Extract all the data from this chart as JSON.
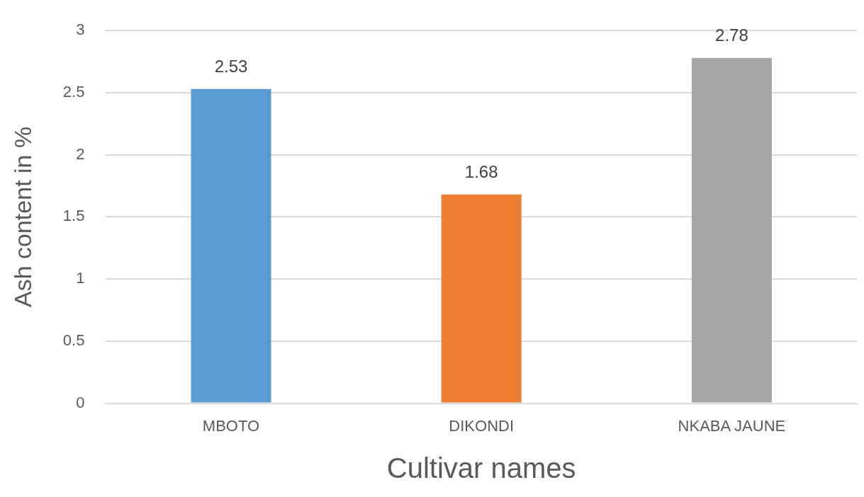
{
  "chart_data": {
    "type": "bar",
    "xlabel": "Cultivar names",
    "ylabel": "Ash content in %",
    "categories": [
      "MBOTO",
      "DIKONDI",
      "NKABA JAUNE"
    ],
    "values": [
      2.53,
      1.68,
      2.78
    ],
    "colors": [
      "#5b9bd5",
      "#ed7d31",
      "#a5a5a5"
    ],
    "ylim": [
      0,
      3
    ],
    "yticks": [
      0,
      0.5,
      1,
      1.5,
      2,
      2.5,
      3
    ],
    "grid": "y",
    "data_labels": true,
    "legend": false
  }
}
